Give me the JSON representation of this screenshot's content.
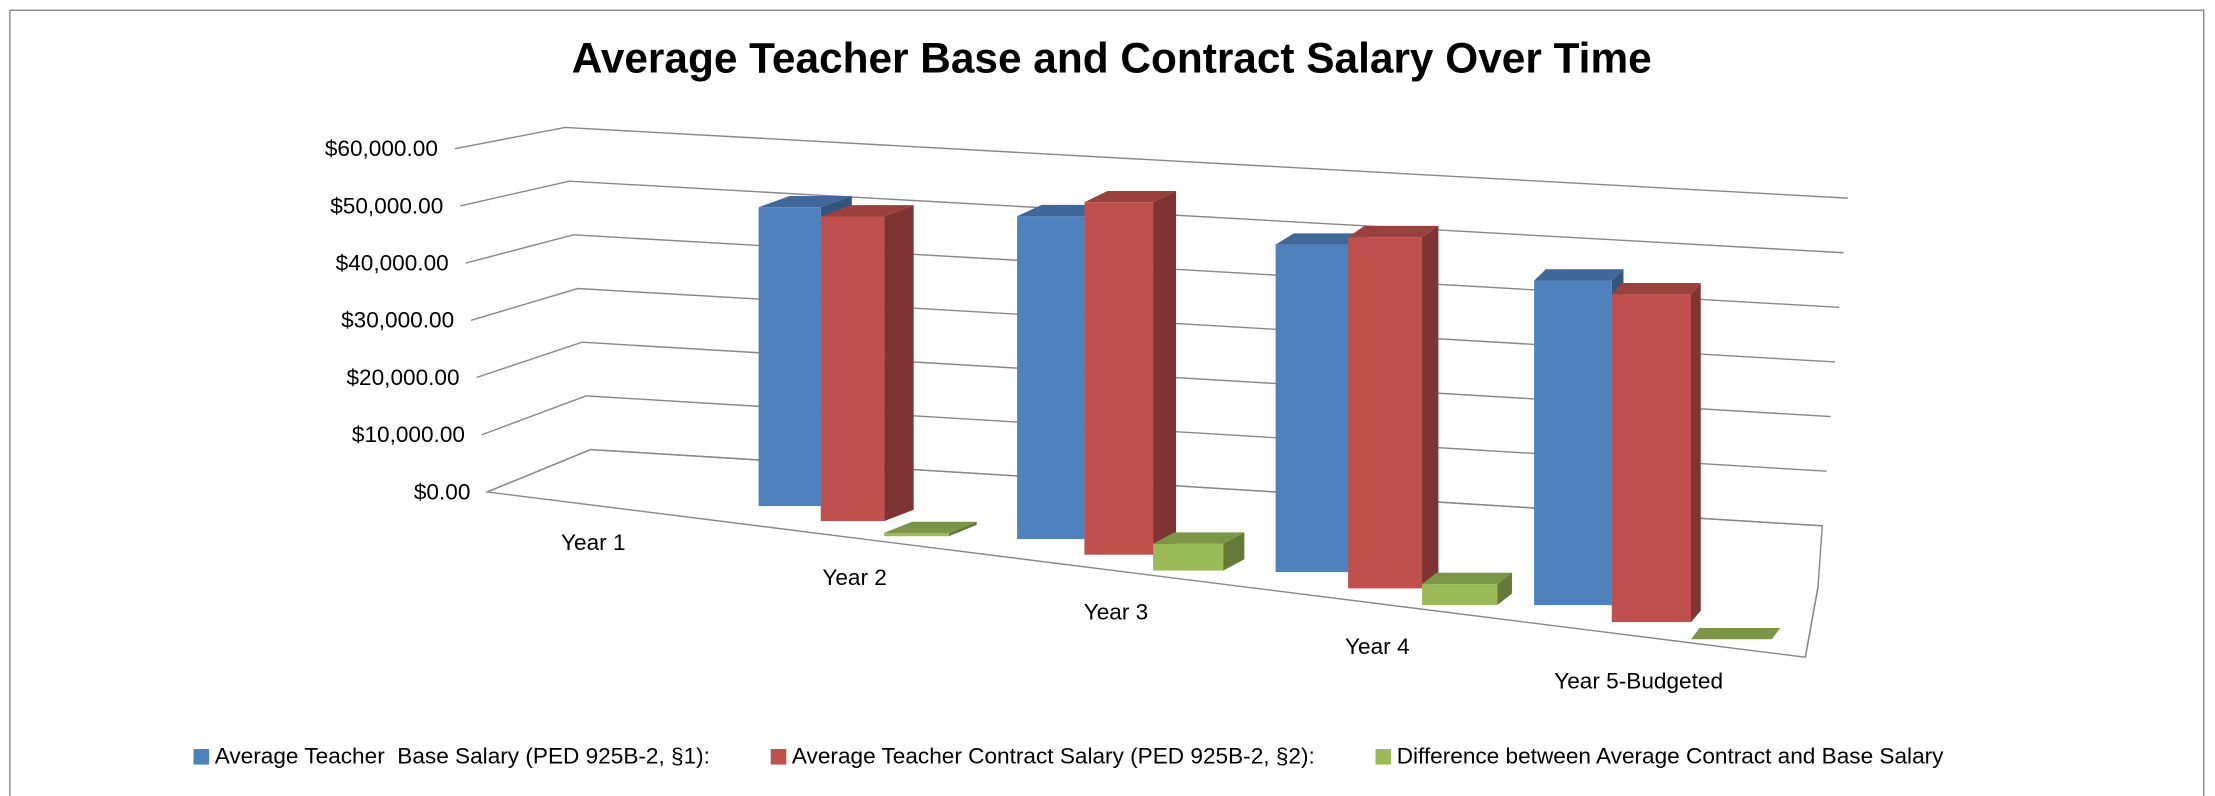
{
  "chart_data": {
    "type": "bar3d",
    "title": "Average Teacher Base and Contract Salary Over Time",
    "categories": [
      "Year 1",
      "Year 2",
      "Year 3",
      "Year 4",
      "Year 5-Budgeted"
    ],
    "series": [
      {
        "name": "Average Teacher  Base Salary (PED 925B-2, §1):",
        "color": "#4f81bd",
        "values": [
          null,
          47000,
          49000,
          48000,
          46000
        ]
      },
      {
        "name": "Average Teacher Contract Salary (PED 925B-2, §2):",
        "color": "#c0504d",
        "values": [
          null,
          47500,
          53000,
          51000,
          46000
        ]
      },
      {
        "name": "Difference between Average Contract and Base Salary",
        "color": "#9bbb59",
        "values": [
          null,
          500,
          4000,
          3000,
          0
        ]
      }
    ],
    "ylim": [
      0,
      60000
    ],
    "yticks": [
      {
        "value": 0,
        "label": "$0.00"
      },
      {
        "value": 10000,
        "label": "$10,000.00"
      },
      {
        "value": 20000,
        "label": "$20,000.00"
      },
      {
        "value": 30000,
        "label": "$30,000.00"
      },
      {
        "value": 40000,
        "label": "$40,000.00"
      },
      {
        "value": 50000,
        "label": "$50,000.00"
      },
      {
        "value": 60000,
        "label": "$60,000.00"
      }
    ],
    "grid": true,
    "legend": "bottom"
  }
}
